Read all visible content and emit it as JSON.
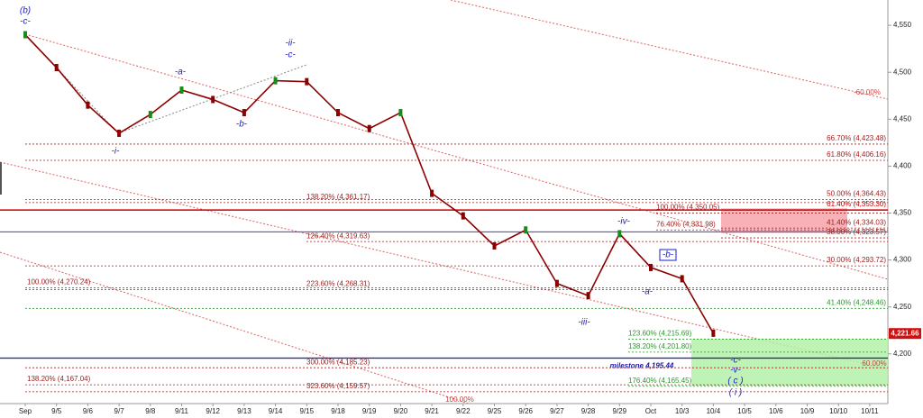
{
  "chart_data": {
    "type": "line",
    "categories": [
      "Sep",
      "9/5",
      "9/6",
      "9/7",
      "9/8",
      "9/11",
      "9/12",
      "9/13",
      "9/14",
      "9/15",
      "9/18",
      "9/19",
      "9/20",
      "9/21",
      "9/22",
      "9/25",
      "9/26",
      "9/27",
      "9/28",
      "9/29",
      "Oct",
      "10/3",
      "10/4",
      "10/5",
      "10/6",
      "10/9",
      "10/10",
      "10/11"
    ],
    "values": [
      4540,
      4505,
      4465,
      4435,
      4455,
      4481,
      4471,
      4457,
      4491,
      4490,
      4457,
      4440,
      4457,
      4371,
      4347,
      4315,
      4332,
      4275,
      4262,
      4328,
      4292,
      4280,
      4222,
      null,
      null,
      null,
      null,
      null
    ],
    "color": "#8b0000",
    "ylim": [
      4147,
      4577
    ],
    "yticks": [
      {
        "value": 4200,
        "label": "4,200"
      },
      {
        "value": 4250,
        "label": "4,250"
      },
      {
        "value": 4300,
        "label": "4,300"
      },
      {
        "value": 4350,
        "label": "4,350"
      },
      {
        "value": 4400,
        "label": "4,400"
      },
      {
        "value": 4450,
        "label": "4,450"
      },
      {
        "value": 4500,
        "label": "4,500"
      },
      {
        "value": 4550,
        "label": "4,550"
      }
    ],
    "last_price": {
      "value": 4221.66,
      "label": "4,221.66"
    },
    "milestone": {
      "value": 4195.44,
      "label": "milestone 4,195.44"
    },
    "reference_line": 4330,
    "levels": [
      {
        "value": 4423.48,
        "label": "66.70% (4,423.48)",
        "color": "#a02020"
      },
      {
        "value": 4406.16,
        "label": "61.80% (4,406.16)",
        "color": "#a02020"
      },
      {
        "value": 4364.43,
        "label": "50.00% (4,364.43)",
        "color": "#a02020"
      },
      {
        "value": 4353.3,
        "label": "61.40% (4,353.30)",
        "color": "#d00000"
      },
      {
        "value": 4334.03,
        "label": "41.40% (4,334.03)",
        "color": "#a02020"
      },
      {
        "value": 4323.57,
        "label": "38.00% (4,323.57)",
        "color": "#a02020"
      },
      {
        "value": 4293.72,
        "label": "30.00% (4,293.72)",
        "color": "#a02020"
      },
      {
        "value": 4248.46,
        "label": "41.40% (4,248.46)",
        "color": "#2a9a2a"
      },
      {
        "value": 4361.17,
        "label": "138.20% (4,361.17)",
        "color": "#a02020"
      },
      {
        "value": 4319.63,
        "label": "126.40% (4,319.63)",
        "color": "#a02020"
      },
      {
        "value": 4268.31,
        "label": "223.60% (4,268.31)",
        "color": "#a02020"
      },
      {
        "value": 4185.23,
        "label": "300.00% (4,185.23)",
        "color": "#a02020"
      },
      {
        "value": 4159.57,
        "label": "323.60% (4,159.57)",
        "color": "#a02020"
      },
      {
        "value": 4270.24,
        "label": "100.00% (4,270.24)",
        "color": "#a02020"
      },
      {
        "value": 4167.04,
        "label": "138.20% (4,167.04)",
        "color": "#a02020"
      },
      {
        "value": 4215.69,
        "label": "123.60% (4,215.69)",
        "color": "#2a9a2a"
      },
      {
        "value": 4201.8,
        "label": "138.20% (4,201.80)",
        "color": "#2a9a2a"
      },
      {
        "value": 4165.45,
        "label": "176.40% (4,165.45)",
        "color": "#2a9a2a"
      },
      {
        "value": 4350.05,
        "label": "100.00% (4,350.05)",
        "color": "#a02020"
      },
      {
        "value": 4331.98,
        "label": "76.40% (4,331.98)",
        "color": "#a02020"
      }
    ],
    "zones": [
      {
        "from": 4355,
        "to": 4329,
        "color": "#f6a3aa"
      },
      {
        "from": 4216,
        "to": 4166,
        "color": "#b4f0a8"
      }
    ],
    "channel_labels": [
      "-60.00%",
      "60.00%",
      "100.00%"
    ],
    "wave_labels": [
      "(b)",
      "-c-",
      "-i-",
      "-a-",
      "-b-",
      "-ii-",
      "-c-",
      "-iii-",
      "-iv-",
      "-a-",
      "-b-",
      "-c-",
      "-v-",
      "( c )",
      "( i )"
    ]
  }
}
